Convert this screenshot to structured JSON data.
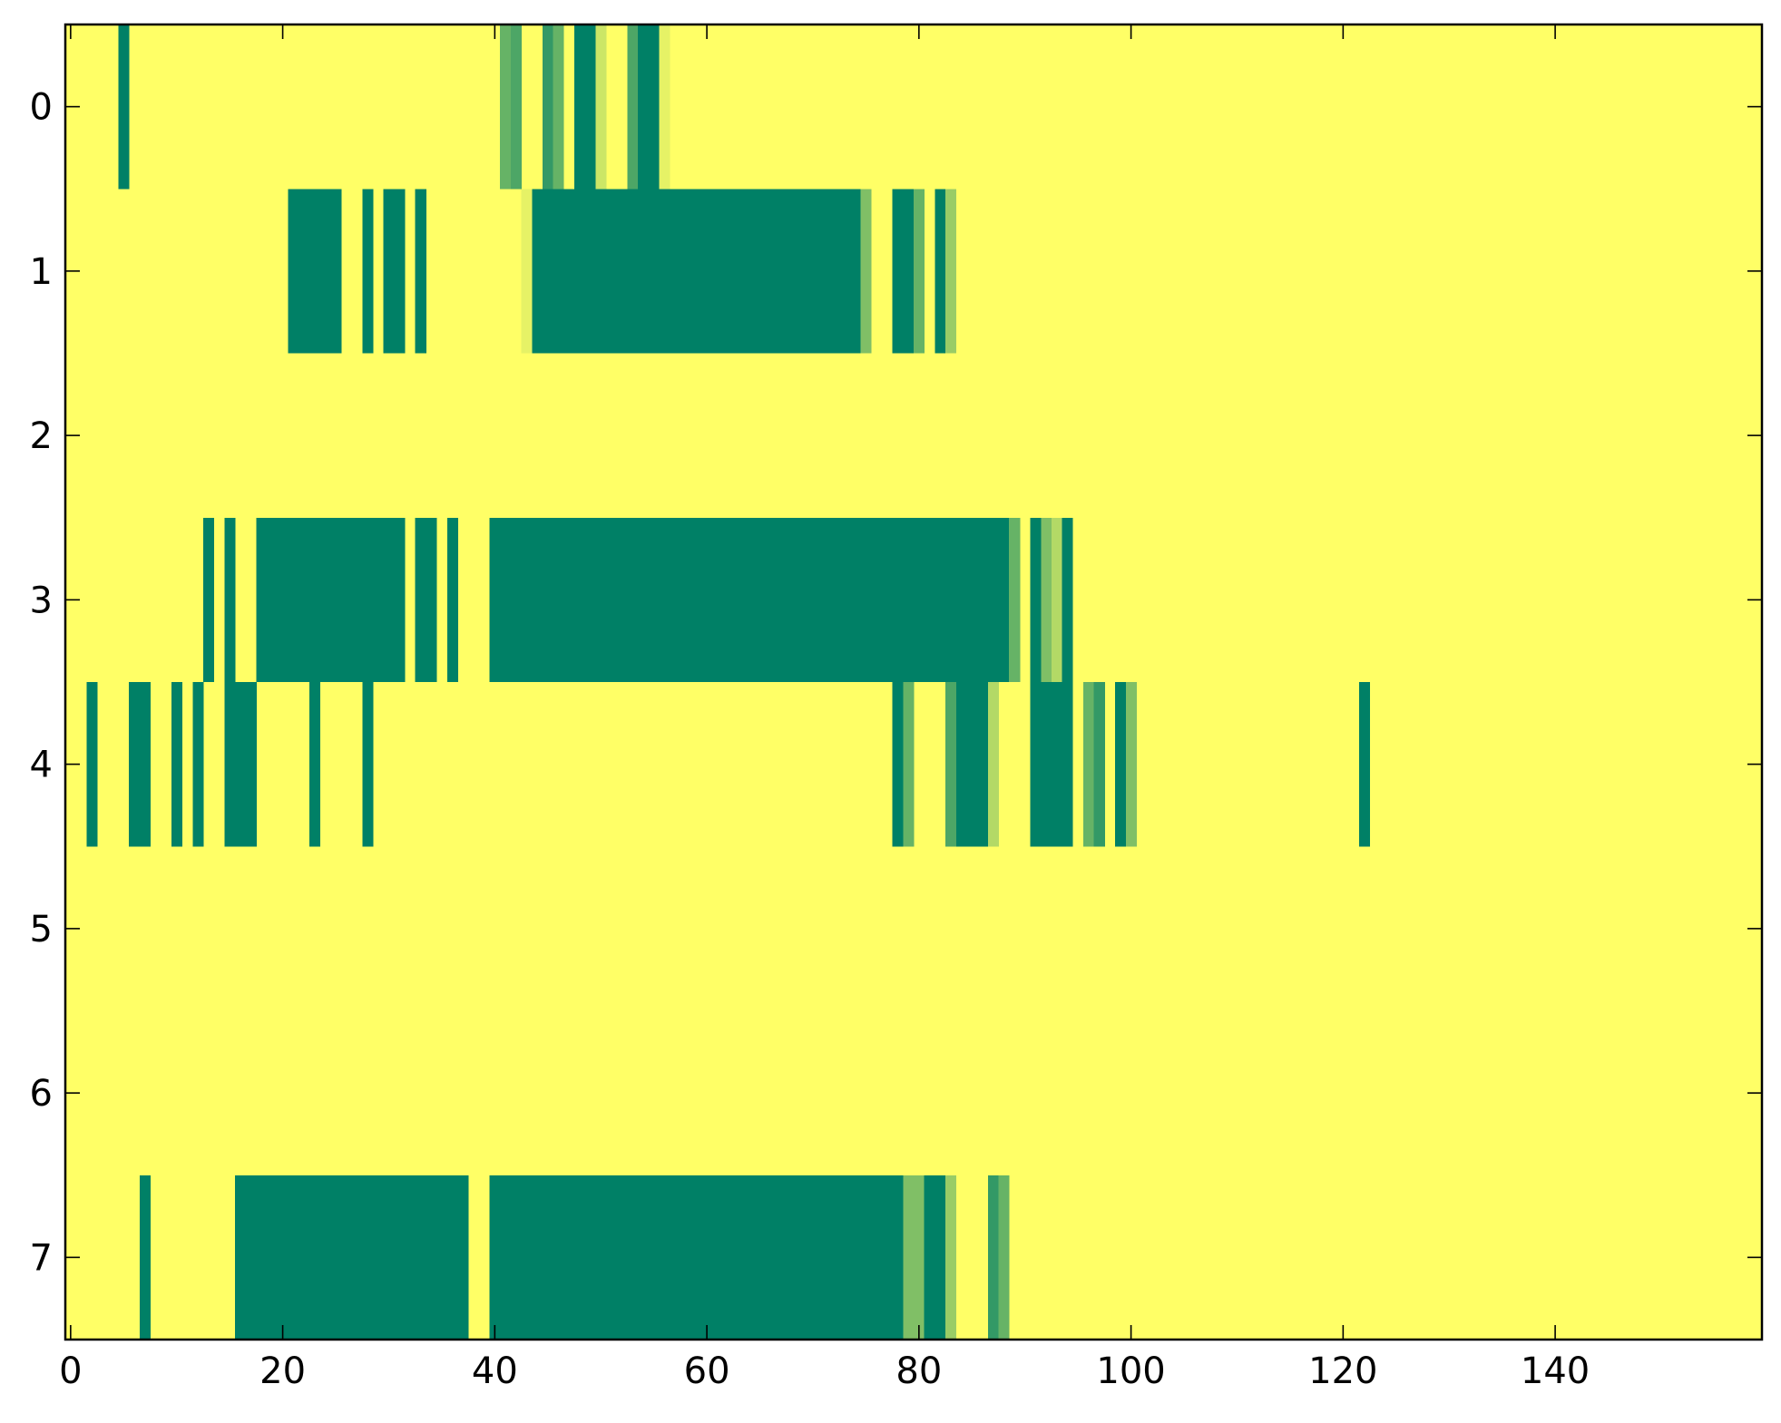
{
  "chart_data": {
    "type": "heatmap",
    "title": "",
    "xlabel": "",
    "ylabel": "",
    "xlim": [
      -0.5,
      159.5
    ],
    "ylim": [
      7.5,
      -0.5
    ],
    "x_ticks": [
      0,
      20,
      40,
      60,
      80,
      100,
      120,
      140
    ],
    "x_tick_labels": [
      "0",
      "20",
      "40",
      "60",
      "80",
      "100",
      "120",
      "140"
    ],
    "y_ticks": [
      0,
      1,
      2,
      3,
      4,
      5,
      6,
      7
    ],
    "y_tick_labels": [
      "0",
      "1",
      "2",
      "3",
      "4",
      "5",
      "6",
      "7"
    ],
    "n_columns": 160,
    "n_rows": 8,
    "background_value": 0,
    "colormap": "summer_r",
    "colors": {
      "low": "#ffff66",
      "high": "#008066",
      "axes": "#000000"
    },
    "grid": false,
    "rows": [
      {
        "row": 0,
        "segments": [
          [
            5,
            5,
            1.0
          ],
          [
            41,
            41,
            0.6
          ],
          [
            42,
            42,
            0.7
          ],
          [
            45,
            45,
            0.8
          ],
          [
            46,
            46,
            0.6
          ],
          [
            48,
            49,
            1.0
          ],
          [
            50,
            50,
            0.2
          ],
          [
            53,
            53,
            0.7
          ],
          [
            54,
            55,
            1.0
          ],
          [
            56,
            56,
            0.1
          ]
        ]
      },
      {
        "row": 1,
        "segments": [
          [
            21,
            25,
            1.0
          ],
          [
            28,
            28,
            1.0
          ],
          [
            30,
            31,
            1.0
          ],
          [
            33,
            33,
            1.0
          ],
          [
            43,
            43,
            0.1
          ],
          [
            44,
            74,
            1.0
          ],
          [
            75,
            75,
            0.5
          ],
          [
            78,
            79,
            1.0
          ],
          [
            80,
            80,
            0.6
          ],
          [
            82,
            82,
            1.0
          ],
          [
            83,
            83,
            0.4
          ]
        ]
      },
      {
        "row": 3,
        "segments": [
          [
            13,
            13,
            1.0
          ],
          [
            15,
            15,
            1.0
          ],
          [
            18,
            31,
            1.0
          ],
          [
            33,
            34,
            1.0
          ],
          [
            36,
            36,
            1.0
          ],
          [
            40,
            88,
            1.0
          ],
          [
            89,
            89,
            0.6
          ],
          [
            91,
            91,
            1.0
          ],
          [
            92,
            92,
            0.5
          ],
          [
            93,
            93,
            0.3
          ],
          [
            94,
            94,
            1.0
          ]
        ]
      },
      {
        "row": 4,
        "segments": [
          [
            2,
            2,
            1.0
          ],
          [
            6,
            7,
            1.0
          ],
          [
            10,
            10,
            1.0
          ],
          [
            12,
            12,
            1.0
          ],
          [
            15,
            17,
            1.0
          ],
          [
            23,
            23,
            1.0
          ],
          [
            28,
            28,
            1.0
          ],
          [
            78,
            78,
            1.0
          ],
          [
            79,
            79,
            0.6
          ],
          [
            83,
            83,
            0.7
          ],
          [
            84,
            86,
            1.0
          ],
          [
            87,
            87,
            0.3
          ],
          [
            91,
            94,
            1.0
          ],
          [
            96,
            96,
            0.6
          ],
          [
            97,
            97,
            0.8
          ],
          [
            99,
            99,
            1.0
          ],
          [
            100,
            100,
            0.5
          ],
          [
            122,
            122,
            1.0
          ]
        ]
      },
      {
        "row": 7,
        "segments": [
          [
            7,
            7,
            1.0
          ],
          [
            16,
            37,
            1.0
          ],
          [
            40,
            78,
            1.0
          ],
          [
            79,
            80,
            0.5
          ],
          [
            81,
            82,
            1.0
          ],
          [
            83,
            83,
            0.4
          ],
          [
            87,
            87,
            0.8
          ],
          [
            88,
            88,
            0.6
          ]
        ]
      }
    ]
  }
}
